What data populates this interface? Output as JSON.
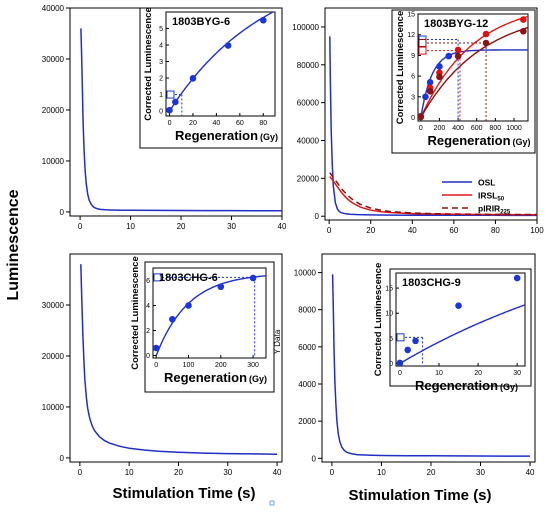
{
  "figure": {
    "ylabel": "Luminescence",
    "xlabel_left": "Stimulation Time (s)",
    "xlabel_right": "Stimulation Time (s)"
  },
  "colors": {
    "osl": "#1f2fc8",
    "irsl": "#e01818",
    "pirir": "#8b1010",
    "point_blue": "#1a35d8",
    "point_red": "#e01010",
    "point_darkred": "#8a1414",
    "axis": "#000000",
    "inset_bg": "#ffffff"
  },
  "chart_data": [
    {
      "id": "panel-1803BYG-6",
      "type": "line",
      "title": "",
      "xlim": [
        -2,
        40
      ],
      "ylim": [
        -800,
        40000
      ],
      "xticks": [
        0,
        10,
        20,
        30,
        40
      ],
      "yticks": [
        0,
        10000,
        20000,
        30000,
        40000
      ],
      "xtick_labels": [
        "0",
        "10",
        "20",
        "30",
        "40"
      ],
      "ytick_labels": [
        "0",
        "10000",
        "20000",
        "30000",
        "40000"
      ],
      "series": [
        {
          "color": "osl",
          "x": [
            0.15,
            0.3,
            0.45,
            0.6,
            0.8,
            1,
            1.2,
            1.5,
            1.8,
            2.2,
            2.6,
            3,
            3.5,
            4,
            5,
            6,
            8,
            10,
            15,
            20,
            25,
            30,
            35,
            40
          ],
          "y": [
            36000,
            31000,
            24000,
            17500,
            12000,
            8200,
            5600,
            3500,
            2300,
            1500,
            1000,
            760,
            600,
            500,
            420,
            380,
            340,
            320,
            290,
            270,
            260,
            250,
            240,
            235
          ]
        }
      ],
      "inset": {
        "label": "1803BYG-6",
        "xlabel": "Regeneration",
        "xunit": "(Gy)",
        "ylabel": "Corrected Luminescence",
        "xlim": [
          -3,
          90
        ],
        "ylim": [
          -0.3,
          6
        ],
        "xticks": [
          0,
          20,
          40,
          60,
          80
        ],
        "xtick_labels": [
          "0",
          "20",
          "40",
          "60",
          "80"
        ],
        "yticks": [
          0,
          1,
          2,
          3,
          4,
          5
        ],
        "ytick_labels": [
          "0",
          "1",
          "2",
          "3",
          "4",
          "5"
        ],
        "fit": {
          "color": "osl",
          "model": "sat",
          "A": 9.1,
          "D0": 82
        },
        "points": [
          {
            "color": "point_blue",
            "x": [
              0,
              5,
              20,
              50,
              80
            ],
            "y": [
              0.05,
              0.55,
              1.98,
              3.97,
              5.5
            ]
          }
        ],
        "natural": {
          "color": "point_blue",
          "y": 1.0,
          "x": 10.5
        }
      }
    },
    {
      "id": "panel-1803BYG-12",
      "type": "line",
      "title": "",
      "xlim": [
        -2,
        100
      ],
      "ylim": [
        -2000,
        110000
      ],
      "xticks": [
        0,
        20,
        40,
        60,
        80,
        100
      ],
      "yticks": [
        0,
        20000,
        40000,
        60000,
        80000,
        100000
      ],
      "xtick_labels": [
        "0",
        "20",
        "40",
        "60",
        "80",
        "100"
      ],
      "ytick_labels": [
        "0",
        "20000",
        "40000",
        "60000",
        "80000",
        "100000"
      ],
      "series": [
        {
          "name": "OSL",
          "color": "osl",
          "dash": "",
          "x": [
            0.3,
            0.6,
            1,
            1.5,
            2,
            3,
            4,
            5,
            6,
            8,
            10,
            14,
            20,
            30,
            40,
            60,
            80,
            100
          ],
          "y": [
            95000,
            70000,
            45000,
            27000,
            16000,
            7000,
            3700,
            2400,
            1800,
            1300,
            1050,
            850,
            700,
            600,
            550,
            500,
            470,
            450
          ]
        },
        {
          "name": "IRSL",
          "name_sub": "50",
          "color": "irsl",
          "dash": "",
          "x": [
            0.3,
            0.6,
            1,
            2,
            3,
            4,
            5,
            6,
            8,
            10,
            12,
            15,
            20,
            25,
            30,
            40,
            50,
            60,
            80,
            100
          ],
          "y": [
            21000,
            20500,
            20000,
            18500,
            17000,
            15500,
            14000,
            12500,
            10000,
            8000,
            6500,
            4800,
            3200,
            2400,
            1900,
            1400,
            1150,
            1000,
            850,
            800
          ]
        },
        {
          "name": "pIRIR",
          "name_sub": "225",
          "color": "pirir",
          "dash": "6,4",
          "x": [
            0.3,
            0.6,
            1,
            2,
            3,
            4,
            5,
            6,
            8,
            10,
            12,
            15,
            20,
            25,
            30,
            40,
            50,
            60,
            80,
            100
          ],
          "y": [
            23000,
            22500,
            22000,
            20500,
            19000,
            17500,
            16000,
            14500,
            12000,
            10000,
            8200,
            6300,
            4300,
            3100,
            2400,
            1700,
            1350,
            1150,
            950,
            880
          ]
        }
      ],
      "legend": {
        "position": "bottom-right"
      },
      "inset": {
        "label": "1803BYG-12",
        "xlabel": "Regeneration",
        "xunit": "(Gy)",
        "ylabel": "Corrected Luminescence",
        "xlim": [
          -30,
          1150
        ],
        "ylim": [
          -0.5,
          15
        ],
        "xticks": [
          0,
          200,
          400,
          600,
          800,
          1000
        ],
        "xtick_labels": [
          "0",
          "200",
          "400",
          "600",
          "800",
          "1000"
        ],
        "yticks": [
          0,
          3,
          6,
          9,
          12,
          15
        ],
        "ytick_labels": [
          "0",
          "3",
          "6",
          "9",
          "12",
          "15"
        ],
        "fits": [
          {
            "color": "osl",
            "model": "sat",
            "A": 9.8,
            "D0": 120
          },
          {
            "color": "irsl",
            "model": "sat",
            "A": 16.8,
            "D0": 560
          },
          {
            "color": "pirir",
            "model": "sat",
            "A": 15.8,
            "D0": 660
          }
        ],
        "points": [
          {
            "color": "point_blue",
            "x": [
              0,
              50,
              100,
              200,
              300
            ],
            "y": [
              0.2,
              3.0,
              5.1,
              7.4,
              8.9
            ]
          },
          {
            "color": "point_red",
            "x": [
              0,
              100,
              200,
              400,
              700,
              1100
            ],
            "y": [
              0.1,
              4.3,
              6.5,
              9.8,
              12.1,
              14.2
            ]
          },
          {
            "color": "point_darkred",
            "x": [
              0,
              100,
              200,
              400,
              700,
              1100
            ],
            "y": [
              0.1,
              3.8,
              5.9,
              8.9,
              10.8,
              12.5
            ]
          }
        ],
        "naturals": [
          {
            "color": "point_blue",
            "y": 11.3,
            "x": 400
          },
          {
            "color": "point_darkred",
            "y": 10.8,
            "x": 700
          },
          {
            "color": "point_red",
            "y": 9.7,
            "x": 420
          }
        ]
      }
    },
    {
      "id": "panel-1803CHG-6",
      "type": "line",
      "title": "",
      "xlim": [
        -2,
        41
      ],
      "ylim": [
        -800,
        40000
      ],
      "xticks": [
        0,
        10,
        20,
        30,
        40
      ],
      "yticks": [
        0,
        10000,
        20000,
        30000
      ],
      "xtick_labels": [
        "0",
        "10",
        "20",
        "30",
        "40"
      ],
      "ytick_labels": [
        "0",
        "10000",
        "20000",
        "30000"
      ],
      "series": [
        {
          "color": "osl",
          "x": [
            0.2,
            0.4,
            0.6,
            0.8,
            1,
            1.3,
            1.6,
            2,
            2.5,
            3,
            4,
            5,
            6,
            8,
            10,
            13,
            16,
            20,
            25,
            30,
            35,
            40
          ],
          "y": [
            38000,
            31000,
            24500,
            19500,
            15500,
            12000,
            9700,
            7800,
            6300,
            5300,
            4100,
            3400,
            2900,
            2300,
            1900,
            1550,
            1300,
            1100,
            950,
            850,
            780,
            720
          ]
        }
      ],
      "inset": {
        "label": "1803CHG-6",
        "xlabel": "Regeneration",
        "xunit": "(Gy)",
        "ylabel": "Corrected Luminescence",
        "right_axis_label": "Y Data",
        "xlim": [
          -10,
          340
        ],
        "ylim": [
          -0.2,
          7
        ],
        "xticks": [
          0,
          100,
          200,
          300
        ],
        "xtick_labels": [
          "0",
          "100",
          "200",
          "300"
        ],
        "yticks": [
          0,
          2,
          4,
          6
        ],
        "ytick_labels": [
          "0",
          "2",
          "4",
          "6"
        ],
        "fit": {
          "color": "osl",
          "model": "sat",
          "A": 6.6,
          "D0": 100
        },
        "points": [
          {
            "color": "point_blue",
            "x": [
              0,
              50,
              100,
              200,
              300
            ],
            "y": [
              0.6,
              2.9,
              4.0,
              5.5,
              6.2
            ]
          }
        ],
        "natural": {
          "color": "point_blue",
          "y": 6.25,
          "x": 305
        }
      }
    },
    {
      "id": "panel-1803CHG-9",
      "type": "line",
      "title": "",
      "xlim": [
        -2,
        41
      ],
      "ylim": [
        -200,
        11000
      ],
      "xticks": [
        0,
        10,
        20,
        30,
        40
      ],
      "yticks": [
        0,
        2000,
        4000,
        6000,
        8000,
        10000
      ],
      "xtick_labels": [
        "0",
        "10",
        "20",
        "30",
        "40"
      ],
      "ytick_labels": [
        "0",
        "2000",
        "4000",
        "6000",
        "8000",
        "10000"
      ],
      "series": [
        {
          "color": "osl",
          "x": [
            0.15,
            0.3,
            0.45,
            0.6,
            0.8,
            1,
            1.3,
            1.6,
            2,
            2.5,
            3,
            4,
            5,
            6,
            8,
            10,
            15,
            20,
            25,
            30,
            35,
            40
          ],
          "y": [
            9900,
            7800,
            5700,
            4100,
            2900,
            2000,
            1300,
            900,
            600,
            420,
            320,
            240,
            200,
            180,
            160,
            150,
            140,
            135,
            130,
            125,
            120,
            120
          ]
        }
      ],
      "inset": {
        "label": "1803CHG-9",
        "xlabel": "Regeneration",
        "xunit": "(Gy)",
        "ylabel": "Corrected Luminescence",
        "xlim": [
          -1,
          32
        ],
        "ylim": [
          -0.5,
          18
        ],
        "xticks": [
          0,
          10,
          20,
          30
        ],
        "xtick_labels": [
          "0",
          "10",
          "20",
          "30"
        ],
        "yticks": [
          0,
          5,
          10,
          15
        ],
        "ytick_labels": [
          "0",
          "5",
          "10",
          "15"
        ],
        "fit": {
          "color": "osl",
          "model": "sat",
          "A": 30,
          "D0": 65
        },
        "points": [
          {
            "color": "point_blue",
            "x": [
              0,
              2,
              4,
              15,
              30
            ],
            "y": [
              0.1,
              2.7,
              4.5,
              11.5,
              17.0
            ]
          }
        ],
        "natural": {
          "color": "point_blue",
          "y": 5.2,
          "x": 5.8
        }
      }
    }
  ]
}
